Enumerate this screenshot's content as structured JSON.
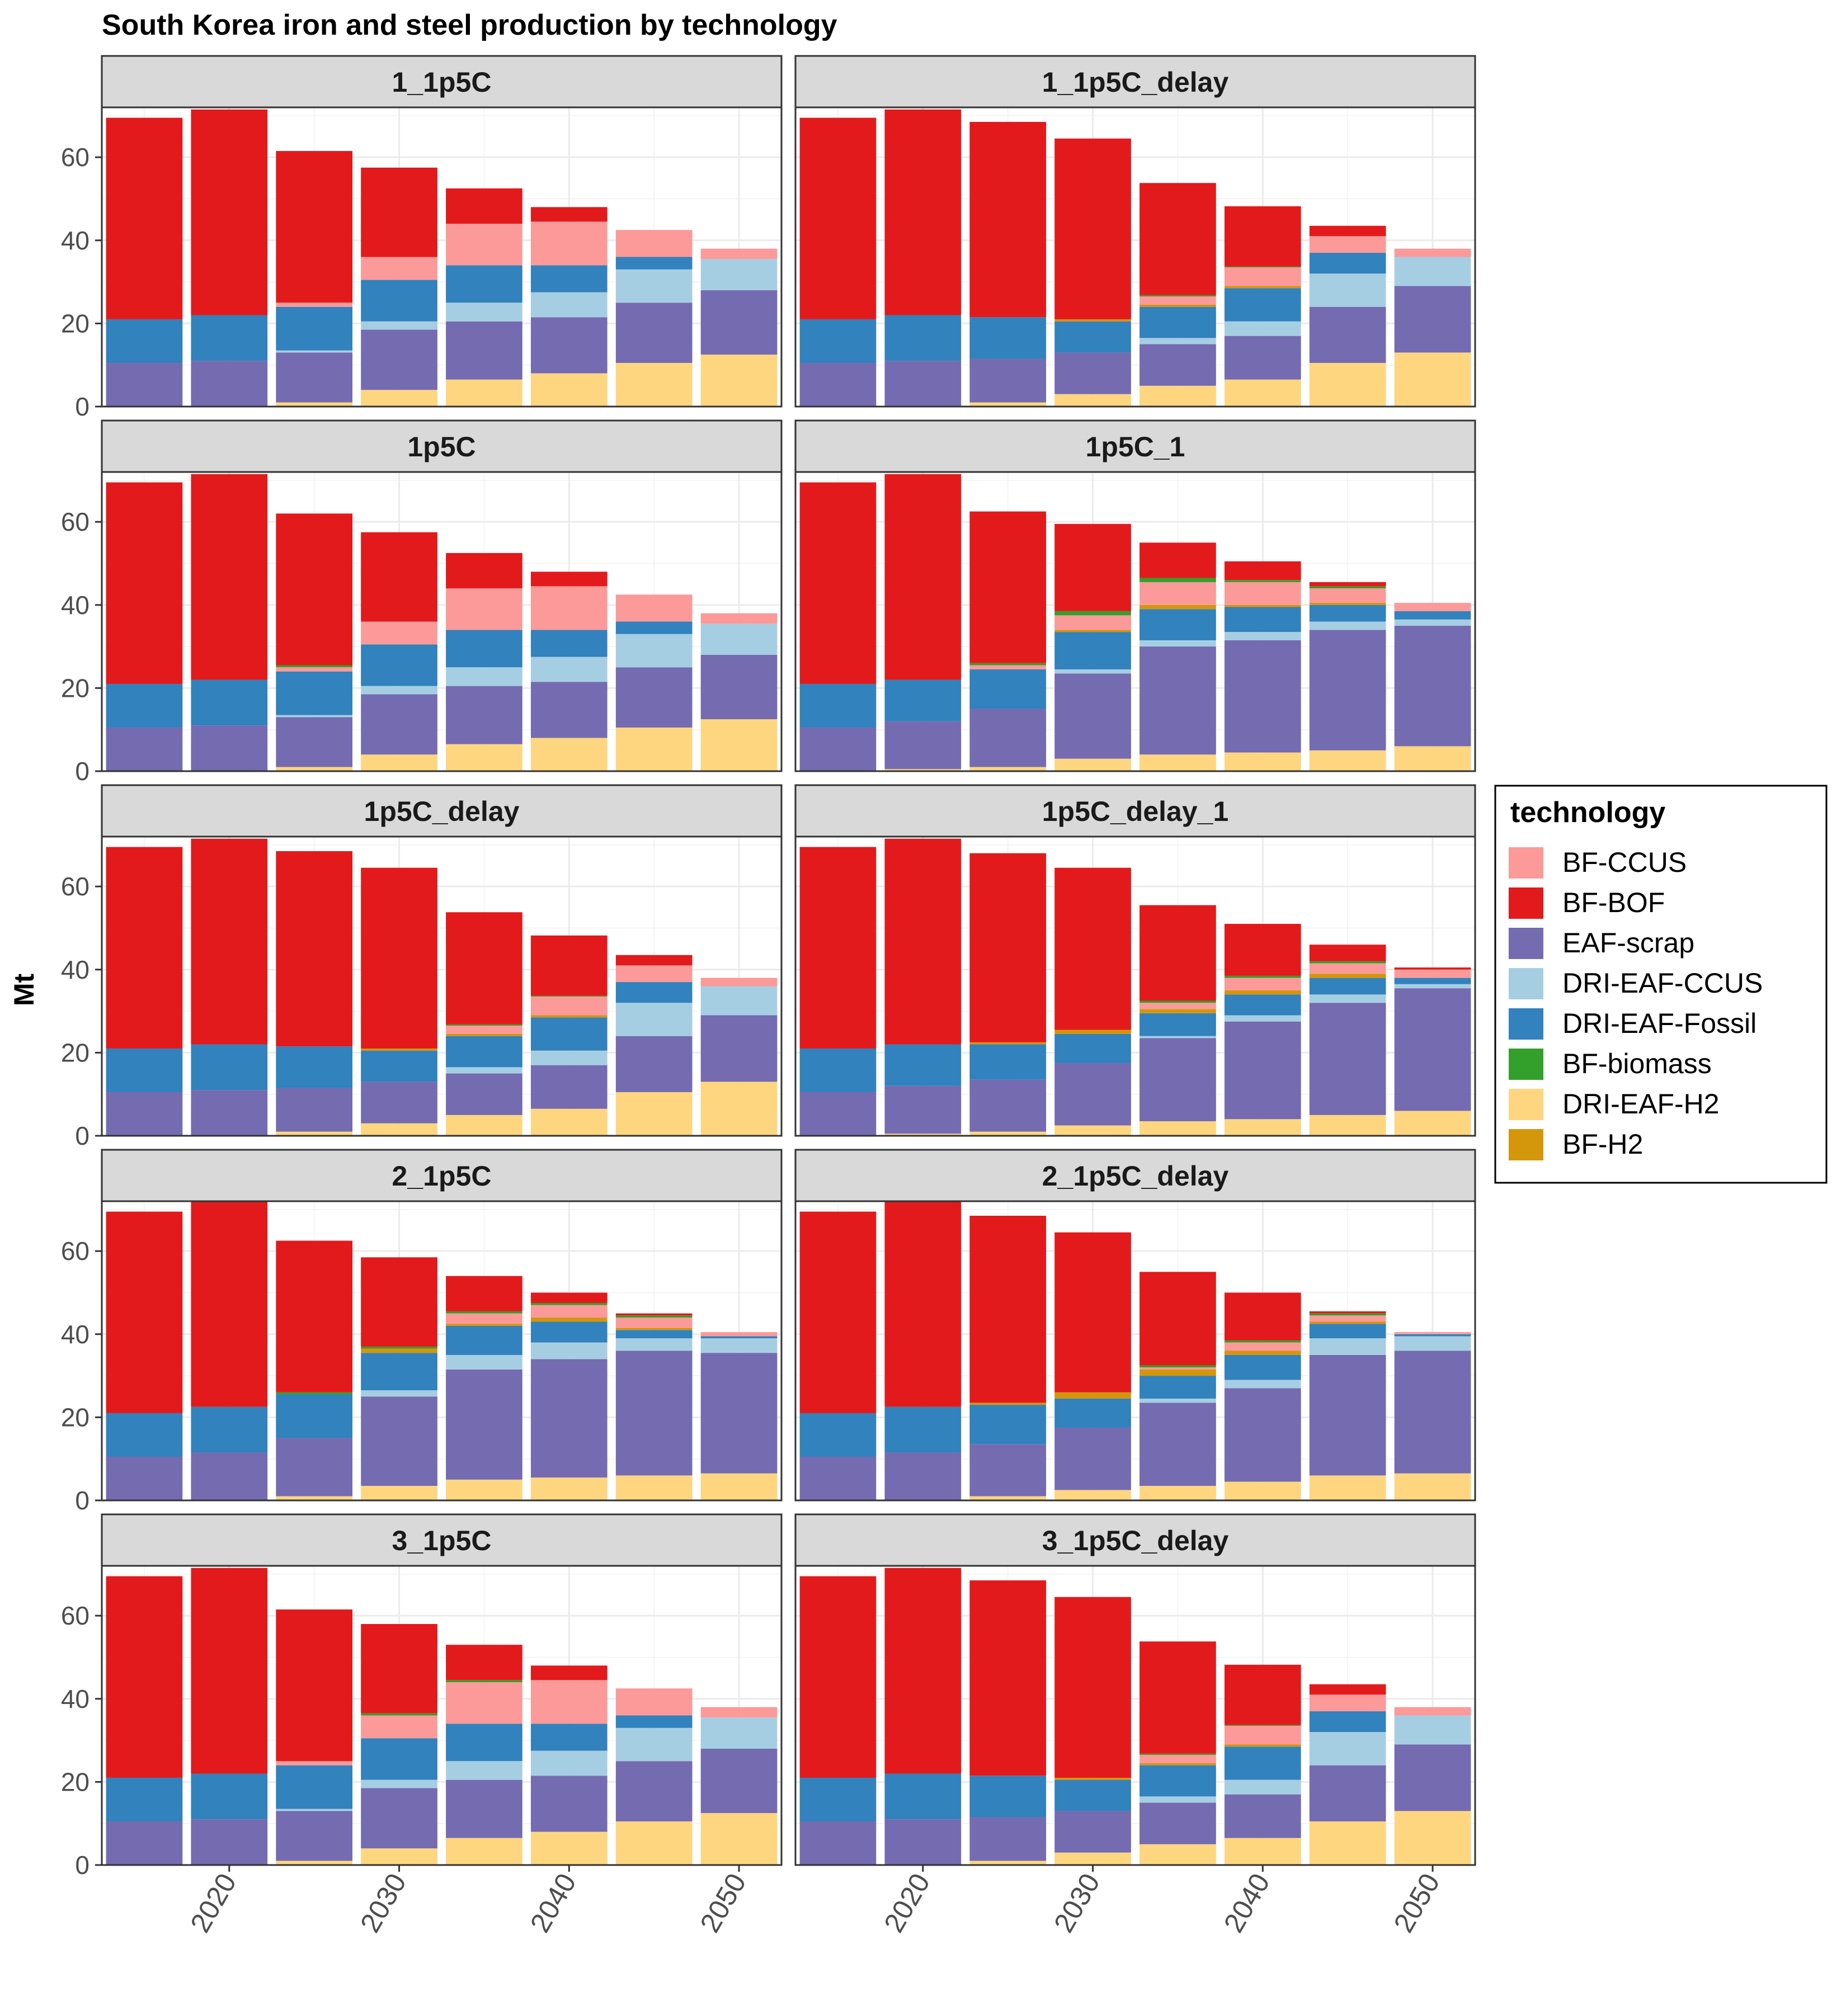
{
  "chart_data": {
    "type": "bar",
    "stacked": true,
    "title": "South Korea iron and steel production by technology",
    "ylabel": "Mt",
    "xlabel": "",
    "x_ticks": [
      2020,
      2030,
      2040,
      2050
    ],
    "y_ticks": [
      0,
      20,
      40,
      60
    ],
    "ylim": [
      0,
      72
    ],
    "grid": true,
    "legend_position": "right",
    "legend": {
      "title": "technology",
      "entries": [
        {
          "name": "BF-CCUS",
          "color": "#FB9A99"
        },
        {
          "name": "BF-BOF",
          "color": "#E31A1C"
        },
        {
          "name": "EAF-scrap",
          "color": "#756BB1"
        },
        {
          "name": "DRI-EAF-CCUS",
          "color": "#A6CEE3"
        },
        {
          "name": "DRI-EAF-Fossil",
          "color": "#3182BD"
        },
        {
          "name": "BF-biomass",
          "color": "#33A02C"
        },
        {
          "name": "DRI-EAF-H2",
          "color": "#FDD67F"
        },
        {
          "name": "BF-H2",
          "color": "#D4960A"
        }
      ]
    },
    "stack_order": [
      "DRI-EAF-H2",
      "EAF-scrap",
      "DRI-EAF-CCUS",
      "DRI-EAF-Fossil",
      "BF-H2",
      "BF-CCUS",
      "BF-biomass",
      "BF-BOF"
    ],
    "years": [
      2015,
      2020,
      2025,
      2030,
      2035,
      2040,
      2045,
      2050
    ],
    "panels": [
      {
        "name": "1_1p5C",
        "series": {
          "DRI-EAF-H2": [
            0,
            0,
            1,
            4,
            6.5,
            8,
            10.5,
            12.5
          ],
          "EAF-scrap": [
            10.5,
            11,
            12,
            14.5,
            14,
            13.5,
            14.5,
            15.5
          ],
          "DRI-EAF-CCUS": [
            0,
            0,
            0.5,
            2,
            4.5,
            6,
            8,
            7.5
          ],
          "DRI-EAF-Fossil": [
            10.5,
            11,
            10.5,
            10,
            9,
            6.5,
            3,
            0
          ],
          "BF-H2": [
            0,
            0,
            0,
            0,
            0,
            0,
            0,
            0
          ],
          "BF-CCUS": [
            0,
            0,
            1,
            5.5,
            10,
            10.5,
            6.5,
            2.5
          ],
          "BF-biomass": [
            0,
            0,
            0,
            0,
            0,
            0,
            0,
            0
          ],
          "BF-BOF": [
            48.5,
            49.5,
            36.5,
            21.5,
            8.5,
            3.5,
            0,
            0
          ]
        }
      },
      {
        "name": "1_1p5C_delay",
        "series": {
          "DRI-EAF-H2": [
            0,
            0,
            1,
            3,
            5,
            6.5,
            10.5,
            13
          ],
          "EAF-scrap": [
            10.5,
            11,
            10.5,
            10,
            10,
            10.5,
            13.5,
            16
          ],
          "DRI-EAF-CCUS": [
            0,
            0,
            0,
            0,
            1.5,
            3.5,
            8,
            7
          ],
          "DRI-EAF-Fossil": [
            10.5,
            11,
            10,
            7.5,
            7.5,
            8,
            5,
            0
          ],
          "BF-H2": [
            0,
            0,
            0,
            0.5,
            0.5,
            0.5,
            0,
            0
          ],
          "BF-CCUS": [
            0,
            0,
            0,
            0,
            2,
            4.5,
            4,
            2
          ],
          "BF-biomass": [
            0,
            0,
            0,
            0,
            0.3,
            0.2,
            0,
            0
          ],
          "BF-BOF": [
            48.5,
            49.5,
            47,
            43.5,
            27,
            14.5,
            2.5,
            0
          ]
        }
      },
      {
        "name": "1p5C",
        "series": {
          "DRI-EAF-H2": [
            0,
            0,
            1,
            4,
            6.5,
            8,
            10.5,
            12.5
          ],
          "EAF-scrap": [
            10.5,
            11,
            12,
            14.5,
            14,
            13.5,
            14.5,
            15.5
          ],
          "DRI-EAF-CCUS": [
            0,
            0,
            0.5,
            2,
            4.5,
            6,
            8,
            7.5
          ],
          "DRI-EAF-Fossil": [
            10.5,
            11,
            10.5,
            10,
            9,
            6.5,
            3,
            0
          ],
          "BF-H2": [
            0,
            0,
            0,
            0,
            0,
            0,
            0,
            0
          ],
          "BF-CCUS": [
            0,
            0,
            1,
            5.5,
            10,
            10.5,
            6.5,
            2.5
          ],
          "BF-biomass": [
            0,
            0,
            0.5,
            0,
            0,
            0,
            0,
            0
          ],
          "BF-BOF": [
            48.5,
            49.5,
            36.5,
            21.5,
            8.5,
            3.5,
            0,
            0
          ]
        }
      },
      {
        "name": "1p5C_1",
        "series": {
          "DRI-EAF-H2": [
            0,
            0.5,
            1,
            3,
            4,
            4.5,
            5,
            6
          ],
          "EAF-scrap": [
            10.5,
            11.5,
            14,
            20.5,
            26,
            27,
            29,
            29
          ],
          "DRI-EAF-CCUS": [
            0,
            0,
            0,
            1,
            1.5,
            2,
            2,
            1.5
          ],
          "DRI-EAF-Fossil": [
            10.5,
            10,
            9.5,
            9,
            7.5,
            6,
            4,
            2
          ],
          "BF-H2": [
            0,
            0,
            0,
            0.5,
            1,
            0.5,
            0.5,
            0
          ],
          "BF-CCUS": [
            0,
            0,
            1,
            3.5,
            5.5,
            5.5,
            3.5,
            2
          ],
          "BF-biomass": [
            0,
            0,
            0.5,
            1,
            1,
            0.5,
            0.5,
            0
          ],
          "BF-BOF": [
            48.5,
            49.5,
            36.5,
            21,
            8.5,
            4.5,
            1,
            0
          ]
        }
      },
      {
        "name": "1p5C_delay",
        "series": {
          "DRI-EAF-H2": [
            0,
            0,
            1,
            3,
            5,
            6.5,
            10.5,
            13
          ],
          "EAF-scrap": [
            10.5,
            11,
            10.5,
            10,
            10,
            10.5,
            13.5,
            16
          ],
          "DRI-EAF-CCUS": [
            0,
            0,
            0,
            0,
            1.5,
            3.5,
            8,
            7
          ],
          "DRI-EAF-Fossil": [
            10.5,
            11,
            10,
            7.5,
            7.5,
            8,
            5,
            0
          ],
          "BF-H2": [
            0,
            0,
            0,
            0.5,
            0.5,
            0.5,
            0,
            0
          ],
          "BF-CCUS": [
            0,
            0,
            0,
            0,
            2,
            4.5,
            4,
            2
          ],
          "BF-biomass": [
            0,
            0,
            0,
            0,
            0.3,
            0.2,
            0,
            0
          ],
          "BF-BOF": [
            48.5,
            49.5,
            47,
            43.5,
            27,
            14.5,
            2.5,
            0
          ]
        }
      },
      {
        "name": "1p5C_delay_1",
        "series": {
          "DRI-EAF-H2": [
            0,
            0.5,
            1,
            2.5,
            3.5,
            4,
            5,
            6
          ],
          "EAF-scrap": [
            10.5,
            11.5,
            12.5,
            15,
            20,
            23.5,
            27,
            29.5
          ],
          "DRI-EAF-CCUS": [
            0,
            0,
            0,
            0,
            0.5,
            1.5,
            2,
            1
          ],
          "DRI-EAF-Fossil": [
            10.5,
            10,
            8.5,
            7,
            5.5,
            5,
            4,
            1.5
          ],
          "BF-H2": [
            0,
            0,
            0.5,
            1,
            1,
            1,
            1,
            0
          ],
          "BF-CCUS": [
            0,
            0,
            0,
            0,
            1.5,
            3,
            2.5,
            2
          ],
          "BF-biomass": [
            0,
            0,
            0,
            0,
            0.5,
            0.5,
            0.5,
            0
          ],
          "BF-BOF": [
            48.5,
            49.5,
            45.5,
            39,
            23,
            12.5,
            4,
            0.5
          ]
        }
      },
      {
        "name": "2_1p5C",
        "series": {
          "DRI-EAF-H2": [
            0,
            0,
            1,
            3.5,
            5,
            5.5,
            6,
            6.5
          ],
          "EAF-scrap": [
            10.5,
            11.5,
            14,
            21.5,
            26.5,
            28.5,
            30,
            29
          ],
          "DRI-EAF-CCUS": [
            0,
            0,
            0,
            1.5,
            3.5,
            4,
            3,
            3.5
          ],
          "DRI-EAF-Fossil": [
            10.5,
            11,
            10.5,
            9,
            7,
            5,
            2,
            0.5
          ],
          "BF-H2": [
            0,
            0,
            0,
            1,
            0.5,
            1,
            0.5,
            0
          ],
          "BF-CCUS": [
            0,
            0,
            0,
            0,
            2.5,
            3,
            2.5,
            1
          ],
          "BF-biomass": [
            0,
            0,
            0.5,
            0.5,
            0.5,
            0.5,
            0.5,
            0
          ],
          "BF-BOF": [
            48.5,
            49.5,
            36.5,
            21.5,
            8.5,
            2.5,
            0.5,
            0
          ]
        }
      },
      {
        "name": "2_1p5C_delay",
        "series": {
          "DRI-EAF-H2": [
            0,
            0,
            1,
            2.5,
            3.5,
            4.5,
            6,
            6.5
          ],
          "EAF-scrap": [
            10.5,
            11.5,
            12.5,
            15,
            20,
            22.5,
            29,
            29.5
          ],
          "DRI-EAF-CCUS": [
            0,
            0,
            0,
            0,
            1,
            2,
            4,
            3.5
          ],
          "DRI-EAF-Fossil": [
            10.5,
            11,
            9.5,
            7,
            5.5,
            6,
            3.5,
            0.5
          ],
          "BF-H2": [
            0,
            0,
            0.5,
            1.5,
            1.5,
            1,
            0.5,
            0
          ],
          "BF-CCUS": [
            0,
            0,
            0,
            0,
            0.5,
            2,
            1.5,
            0.5
          ],
          "BF-biomass": [
            0,
            0,
            0,
            0,
            0.5,
            0.5,
            0.5,
            0
          ],
          "BF-BOF": [
            48.5,
            49.5,
            45,
            38.5,
            22.5,
            11.5,
            0.5,
            0
          ]
        }
      },
      {
        "name": "3_1p5C",
        "series": {
          "DRI-EAF-H2": [
            0,
            0,
            1,
            4,
            6.5,
            8,
            10.5,
            12.5
          ],
          "EAF-scrap": [
            10.5,
            11,
            12,
            14.5,
            14,
            13.5,
            14.5,
            15.5
          ],
          "DRI-EAF-CCUS": [
            0,
            0,
            0.5,
            2,
            4.5,
            6,
            8,
            7.5
          ],
          "DRI-EAF-Fossil": [
            10.5,
            11,
            10.5,
            10,
            9,
            6.5,
            3,
            0
          ],
          "BF-H2": [
            0,
            0,
            0,
            0,
            0,
            0,
            0,
            0
          ],
          "BF-CCUS": [
            0,
            0,
            1,
            5.5,
            10,
            10.5,
            6.5,
            2.5
          ],
          "BF-biomass": [
            0,
            0,
            0,
            0.5,
            0.5,
            0,
            0,
            0
          ],
          "BF-BOF": [
            48.5,
            49.5,
            36.5,
            21.5,
            8.5,
            3.5,
            0,
            0
          ]
        }
      },
      {
        "name": "3_1p5C_delay",
        "series": {
          "DRI-EAF-H2": [
            0,
            0,
            1,
            3,
            5,
            6.5,
            10.5,
            13
          ],
          "EAF-scrap": [
            10.5,
            11,
            10.5,
            10,
            10,
            10.5,
            13.5,
            16
          ],
          "DRI-EAF-CCUS": [
            0,
            0,
            0,
            0,
            1.5,
            3.5,
            8,
            7
          ],
          "DRI-EAF-Fossil": [
            10.5,
            11,
            10,
            7.5,
            7.5,
            8,
            5,
            0
          ],
          "BF-H2": [
            0,
            0,
            0,
            0.5,
            0.5,
            0.5,
            0,
            0
          ],
          "BF-CCUS": [
            0,
            0,
            0,
            0,
            2,
            4.5,
            4,
            2
          ],
          "BF-biomass": [
            0,
            0,
            0,
            0,
            0.3,
            0.2,
            0,
            0
          ],
          "BF-BOF": [
            48.5,
            49.5,
            47,
            43.5,
            27,
            14.5,
            2.5,
            0
          ]
        }
      }
    ]
  }
}
